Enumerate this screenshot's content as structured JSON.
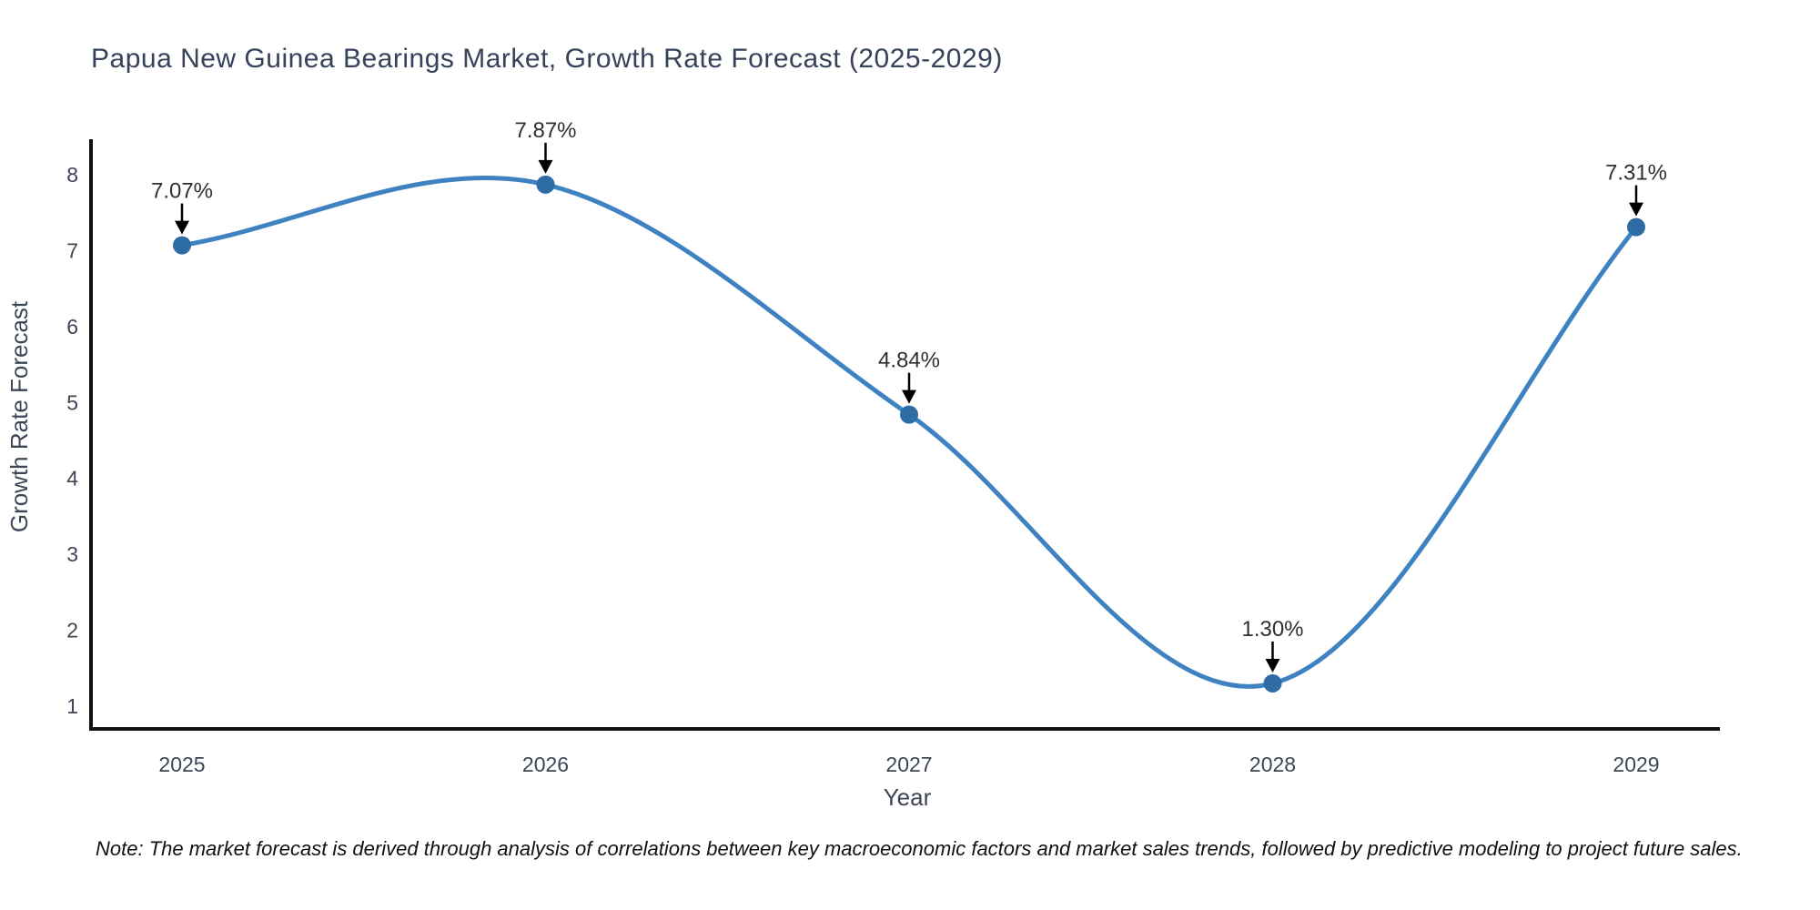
{
  "title": "Papua New Guinea Bearings Market, Growth Rate Forecast (2025-2029)",
  "note": "Note: The market forecast is derived through analysis of correlations between key macroeconomic factors and market sales trends, followed by predictive modeling to project future sales.",
  "chart_data": {
    "type": "line",
    "title": "Papua New Guinea Bearings Market, Growth Rate Forecast (2025-2029)",
    "x": [
      2025,
      2026,
      2027,
      2028,
      2029
    ],
    "values": [
      7.07,
      7.87,
      4.84,
      1.3,
      7.31
    ],
    "point_labels": [
      "7.07%",
      "7.87%",
      "4.84%",
      "1.30%",
      "7.31%"
    ],
    "xlabel": "Year",
    "ylabel": "Growth Rate Forecast",
    "yticks": [
      1,
      2,
      3,
      4,
      5,
      6,
      7,
      8
    ],
    "ylim": [
      1,
      8
    ],
    "xlim": [
      2025,
      2029
    ],
    "grid": false,
    "legend": "none",
    "line_color": "#3e82c1",
    "marker_color": "#2d6ca5",
    "spine_color": "#111111",
    "arrow_color": "#000000",
    "smooth": true
  }
}
